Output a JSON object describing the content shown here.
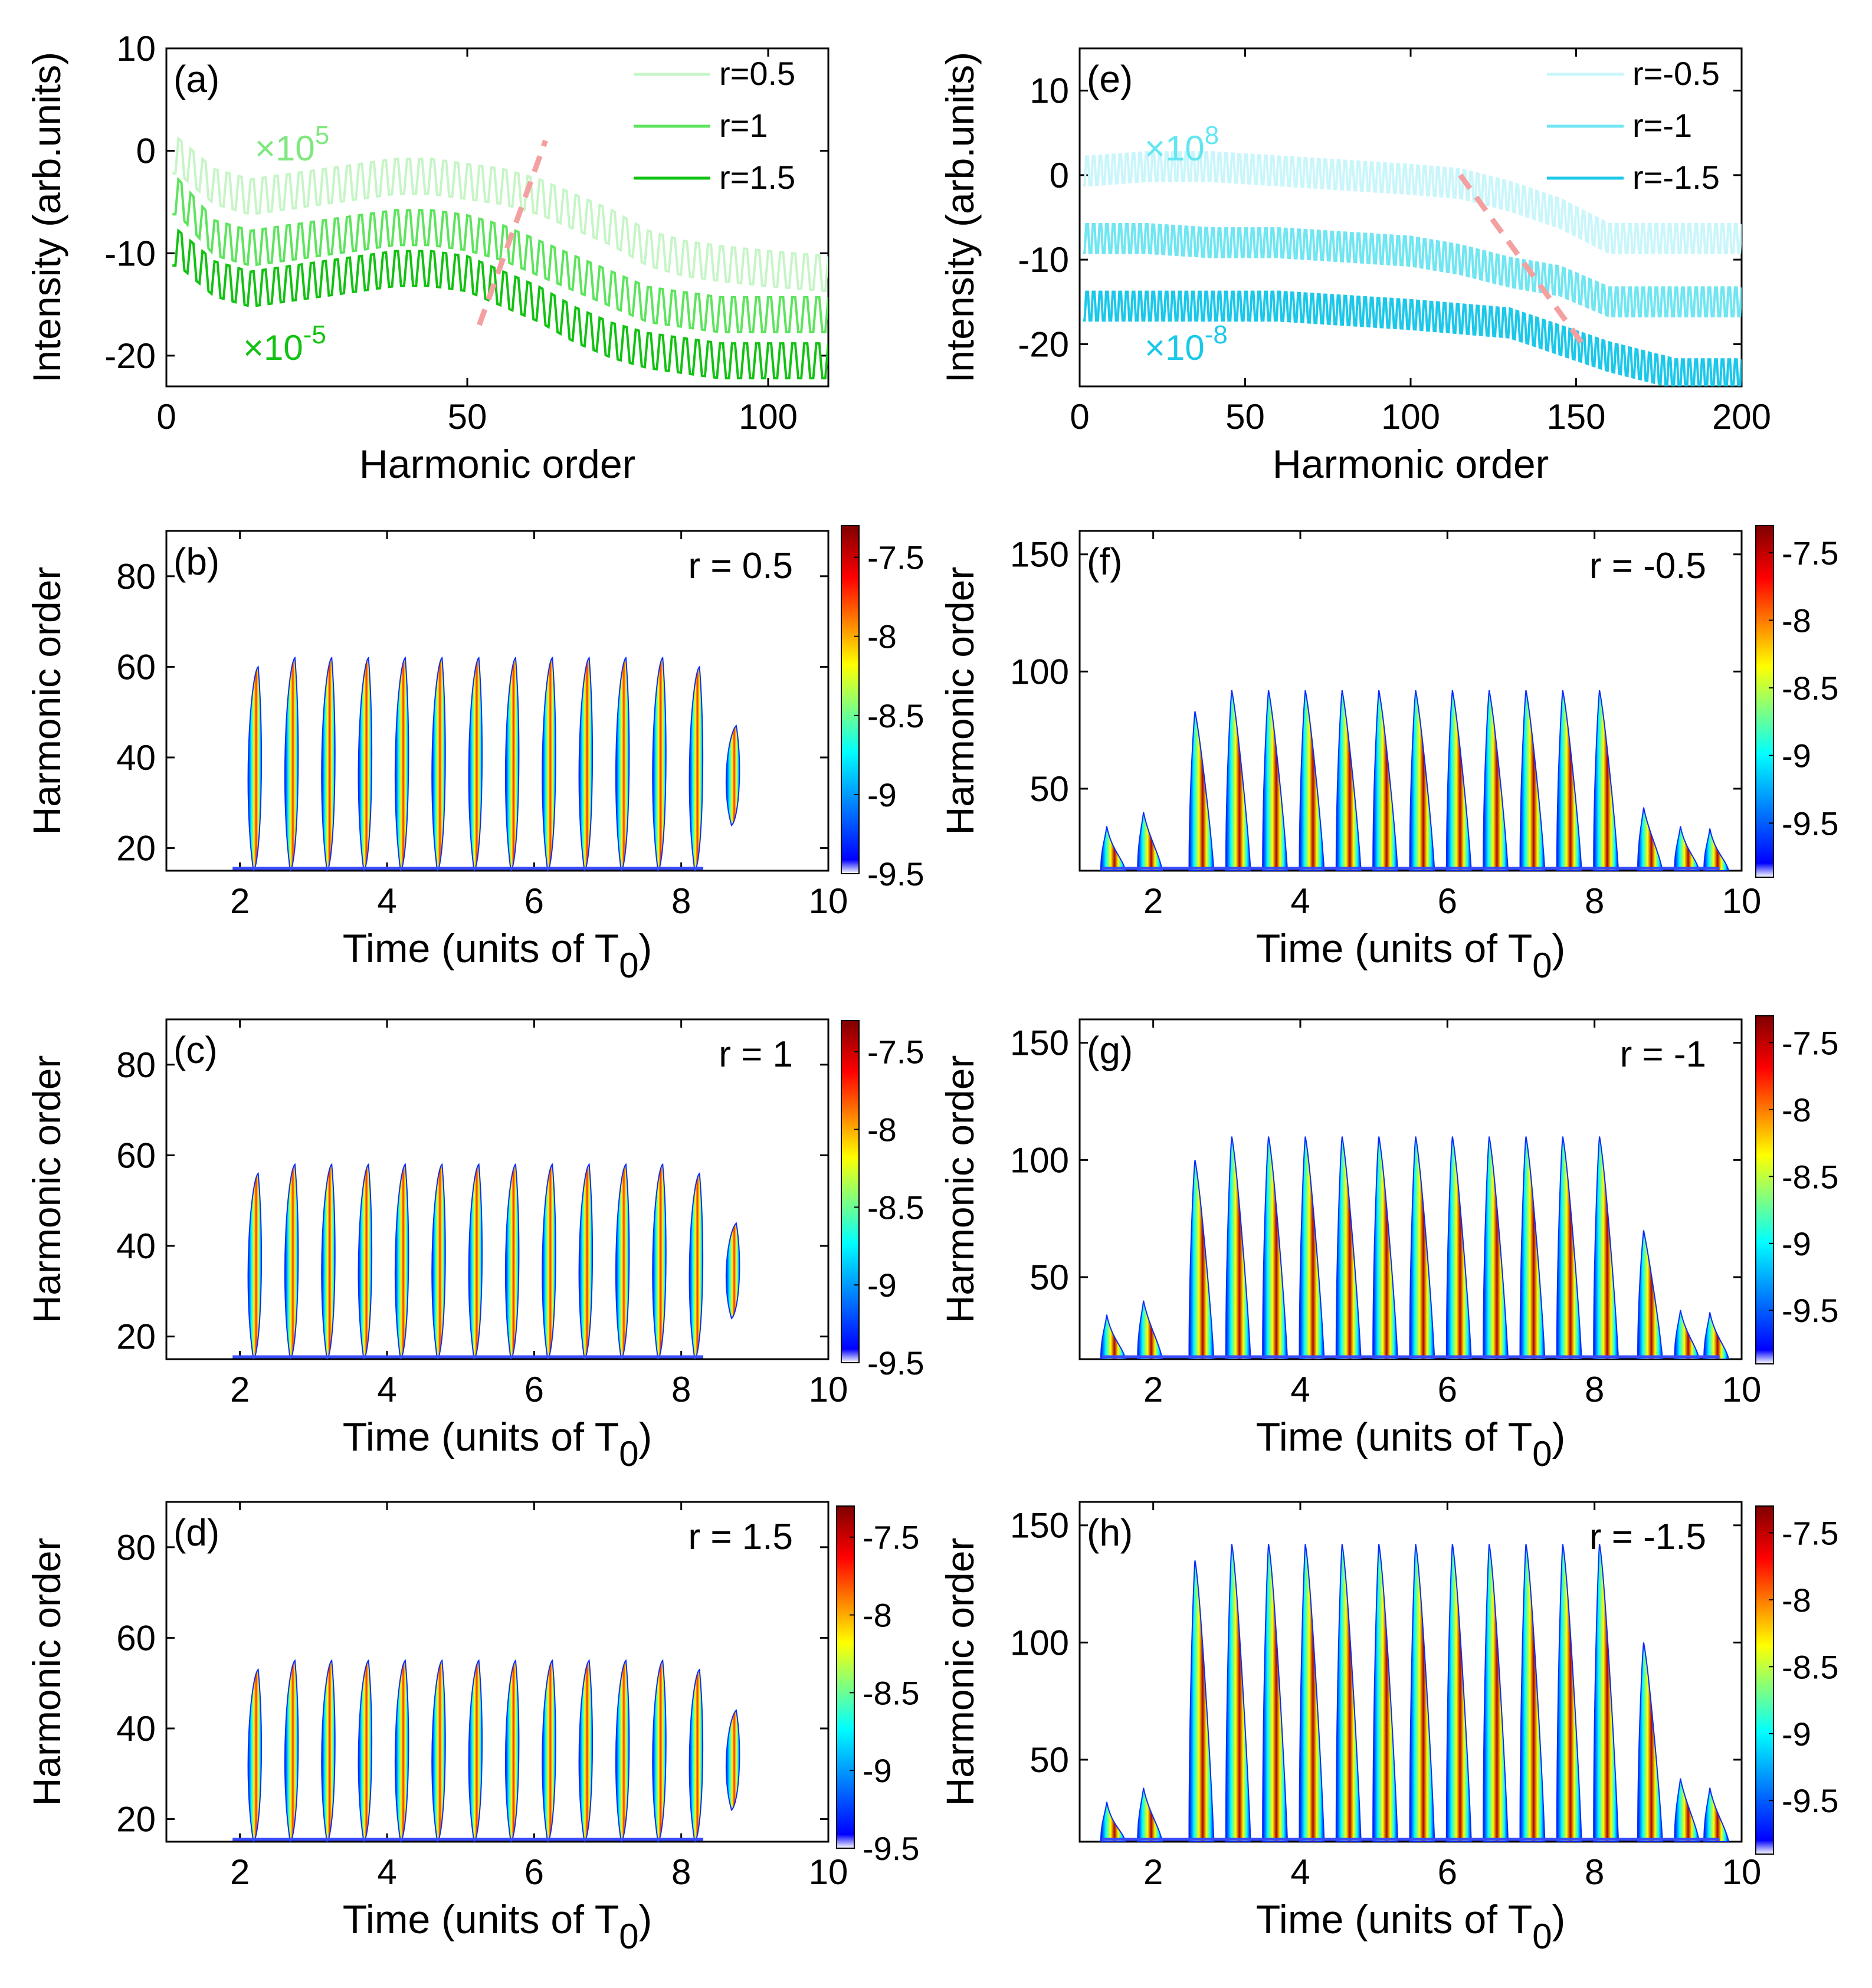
{
  "chart_data": [
    {
      "id": "a",
      "type": "line",
      "panel_label": "(a)",
      "xlabel": "Harmonic order",
      "ylabel": "Intensity (arb.units)",
      "xlim": [
        0,
        110
      ],
      "ylim": [
        -23,
        10
      ],
      "xticks": [
        0,
        50,
        100
      ],
      "yticks": [
        10,
        0,
        -10,
        -20
      ],
      "tick_labels_y": [
        "10",
        "0",
        "-10",
        "-20"
      ],
      "tick_labels_x": [
        "0",
        "50",
        "100"
      ],
      "series": [
        {
          "name": "r=0.5",
          "color": "#c6f5c6",
          "values": [
            -1,
            -4,
            -5,
            -4.5,
            -4,
            -3.5,
            -3,
            -3,
            -3.5,
            -4,
            -5,
            -6.5,
            -8,
            -10,
            -11,
            -11.5,
            -12,
            -12.5
          ]
        },
        {
          "name": "r=1",
          "color": "#5de45d",
          "values": [
            -5,
            -9,
            -10,
            -9.5,
            -9,
            -8.5,
            -8,
            -8,
            -8.5,
            -9.5,
            -11,
            -12.5,
            -14,
            -15.5,
            -16,
            -16.5,
            -16.5,
            -16.5
          ]
        },
        {
          "name": "r=1.5",
          "color": "#12c212",
          "values": [
            -10,
            -13,
            -14,
            -13.5,
            -13,
            -12.5,
            -12,
            -12,
            -12.5,
            -14,
            -15.5,
            -17.5,
            -19,
            -20,
            -20.5,
            -21,
            -21,
            -21
          ]
        }
      ],
      "x": [
        2,
        8,
        14,
        20,
        26,
        32,
        38,
        44,
        50,
        56,
        62,
        68,
        74,
        80,
        86,
        92,
        100,
        110
      ],
      "annotations": [
        {
          "text": "×10",
          "exp": "5",
          "color": "#7ee87e"
        },
        {
          "text": "×10",
          "exp": "-5",
          "color": "#12c212"
        }
      ],
      "cutoff_line": {
        "color": "#f4a0a0",
        "x": [
          52,
          63
        ],
        "y": [
          -17,
          1
        ]
      }
    },
    {
      "id": "e",
      "type": "line",
      "panel_label": "(e)",
      "xlabel": "Harmonic order",
      "ylabel": "Intensity (arb.units)",
      "xlim": [
        0,
        200
      ],
      "ylim": [
        -25,
        15
      ],
      "xticks": [
        0,
        50,
        100,
        150,
        200
      ],
      "yticks": [
        10,
        0,
        -10,
        -20
      ],
      "tick_labels_y": [
        "10",
        "0",
        "-10",
        "-20"
      ],
      "tick_labels_x": [
        "0",
        "50",
        "100",
        "150",
        "200"
      ],
      "series": [
        {
          "name": "r=-0.5",
          "color": "#c9f6fb",
          "values": [
            0,
            0.5,
            0.5,
            0,
            -0.5,
            -1,
            -1.5,
            -3,
            -5,
            -8,
            -8,
            -8
          ]
        },
        {
          "name": "r=-1",
          "color": "#6fe6f2",
          "values": [
            -8,
            -8,
            -8.5,
            -8.5,
            -9,
            -9.5,
            -10.5,
            -12,
            -13,
            -15.5,
            -15.5,
            -15.5
          ]
        },
        {
          "name": "r=-1.5",
          "color": "#1cc8ea",
          "values": [
            -16,
            -16,
            -16,
            -16,
            -16.5,
            -17,
            -17.5,
            -18,
            -20,
            -22,
            -24,
            -24
          ]
        }
      ],
      "x": [
        3,
        20,
        40,
        60,
        80,
        100,
        115,
        130,
        145,
        160,
        180,
        200
      ],
      "annotations": [
        {
          "text": "×10",
          "exp": "8",
          "color": "#62e6f2"
        },
        {
          "text": "×10",
          "exp": "-8",
          "color": "#1cc8ea"
        }
      ],
      "cutoff_line": {
        "color": "#f4a0a0",
        "x": [
          115,
          152
        ],
        "y": [
          0,
          -20
        ]
      }
    },
    {
      "id": "b",
      "type": "heatmap",
      "panel_label": "(b)",
      "r_label": "r = 0.5",
      "xlabel_main": "Time (units of T",
      "xlabel_sub": "0",
      "xlabel_close": ")",
      "ylabel": "Harmonic order",
      "xlim": [
        1,
        10
      ],
      "ylim": [
        15,
        90
      ],
      "xticks": [
        2,
        4,
        6,
        8,
        10
      ],
      "tick_labels_x": [
        "2",
        "4",
        "6",
        "8",
        "10"
      ],
      "yticks": [
        80,
        60,
        40,
        20
      ],
      "tick_labels_y": [
        "80",
        "60",
        "40",
        "20"
      ],
      "colorbar": {
        "range": [
          -9.5,
          -7.3
        ],
        "ticks": [
          -7.5,
          -8,
          -8.5,
          -9,
          -9.5
        ],
        "labels": [
          "-7.5",
          "-8",
          "-8.5",
          "-9",
          "-9.5"
        ]
      },
      "bursts": {
        "t": [
          2.2,
          2.7,
          3.2,
          3.7,
          4.2,
          4.7,
          5.2,
          5.7,
          6.2,
          6.7,
          7.2,
          7.7,
          8.2,
          8.7
        ],
        "hmax": [
          60,
          62,
          62,
          62,
          62,
          62,
          62,
          62,
          62,
          62,
          62,
          62,
          60,
          47
        ],
        "hmin": [
          15,
          15,
          15,
          15,
          15,
          15,
          15,
          15,
          15,
          15,
          15,
          15,
          15,
          25
        ]
      }
    },
    {
      "id": "c",
      "type": "heatmap",
      "panel_label": "(c)",
      "r_label": "r = 1",
      "xlabel_main": "Time (units of T",
      "xlabel_sub": "0",
      "xlabel_close": ")",
      "ylabel": "Harmonic order",
      "xlim": [
        1,
        10
      ],
      "ylim": [
        15,
        90
      ],
      "xticks": [
        2,
        4,
        6,
        8,
        10
      ],
      "tick_labels_x": [
        "2",
        "4",
        "6",
        "8",
        "10"
      ],
      "yticks": [
        80,
        60,
        40,
        20
      ],
      "tick_labels_y": [
        "80",
        "60",
        "40",
        "20"
      ],
      "colorbar": {
        "range": [
          -9.5,
          -7.3
        ],
        "ticks": [
          -7.5,
          -8,
          -8.5,
          -9,
          -9.5
        ],
        "labels": [
          "-7.5",
          "-8",
          "-8.5",
          "-9",
          "-9.5"
        ]
      },
      "bursts": {
        "t": [
          2.2,
          2.7,
          3.2,
          3.7,
          4.2,
          4.7,
          5.2,
          5.7,
          6.2,
          6.7,
          7.2,
          7.7,
          8.2,
          8.7
        ],
        "hmax": [
          56,
          58,
          58,
          58,
          58,
          58,
          58,
          58,
          58,
          58,
          58,
          58,
          56,
          45
        ],
        "hmin": [
          15,
          15,
          15,
          15,
          15,
          15,
          15,
          15,
          15,
          15,
          15,
          15,
          15,
          24
        ]
      }
    },
    {
      "id": "d",
      "type": "heatmap",
      "panel_label": "(d)",
      "r_label": "r = 1.5",
      "xlabel_main": "Time (units of T",
      "xlabel_sub": "0",
      "xlabel_close": ")",
      "ylabel": "Harmonic order",
      "xlim": [
        1,
        10
      ],
      "ylim": [
        15,
        90
      ],
      "xticks": [
        2,
        4,
        6,
        8,
        10
      ],
      "tick_labels_x": [
        "2",
        "4",
        "6",
        "8",
        "10"
      ],
      "yticks": [
        80,
        60,
        40,
        20
      ],
      "tick_labels_y": [
        "80",
        "60",
        "40",
        "20"
      ],
      "colorbar": {
        "range": [
          -9.5,
          -7.3
        ],
        "ticks": [
          -7.5,
          -8,
          -8.5,
          -9,
          -9.5
        ],
        "labels": [
          "-7.5",
          "-8",
          "-8.5",
          "-9",
          "-9.5"
        ]
      },
      "bursts": {
        "t": [
          2.2,
          2.7,
          3.2,
          3.7,
          4.2,
          4.7,
          5.2,
          5.7,
          6.2,
          6.7,
          7.2,
          7.7,
          8.2,
          8.7
        ],
        "hmax": [
          53,
          55,
          55,
          55,
          55,
          55,
          55,
          55,
          55,
          55,
          55,
          55,
          53,
          44
        ],
        "hmin": [
          15,
          15,
          15,
          15,
          15,
          15,
          15,
          15,
          15,
          15,
          15,
          15,
          15,
          22
        ]
      }
    },
    {
      "id": "f",
      "type": "heatmap",
      "panel_label": "(f)",
      "r_label": "r = -0.5",
      "xlabel_main": "Time (units of T",
      "xlabel_sub": "0",
      "xlabel_close": ")",
      "ylabel": "Harmonic order",
      "xlim": [
        1,
        10
      ],
      "ylim": [
        15,
        160
      ],
      "xticks": [
        2,
        4,
        6,
        8,
        10
      ],
      "tick_labels_x": [
        "2",
        "4",
        "6",
        "8",
        "10"
      ],
      "yticks": [
        150,
        100,
        50
      ],
      "tick_labels_y": [
        "150",
        "100",
        "50"
      ],
      "colorbar": {
        "range": [
          -9.9,
          -7.3
        ],
        "ticks": [
          -7.5,
          -8,
          -8.5,
          -9,
          -9.5
        ],
        "labels": [
          "-7.5",
          "-8",
          "-8.5",
          "-9",
          "-9.5"
        ]
      },
      "bursts": {
        "t": [
          1.4,
          1.9,
          2.6,
          3.1,
          3.6,
          4.1,
          4.6,
          5.1,
          5.6,
          6.1,
          6.6,
          7.1,
          7.6,
          8.1,
          8.7,
          9.2,
          9.6
        ],
        "hmax": [
          34,
          40,
          83,
          92,
          92,
          92,
          92,
          92,
          92,
          92,
          92,
          92,
          92,
          92,
          42,
          34,
          33
        ],
        "hmin": [
          15,
          15,
          15,
          15,
          15,
          15,
          15,
          15,
          15,
          15,
          15,
          15,
          15,
          15,
          15,
          15,
          15
        ]
      }
    },
    {
      "id": "g",
      "type": "heatmap",
      "panel_label": "(g)",
      "r_label": "r = -1",
      "xlabel_main": "Time (units of T",
      "xlabel_sub": "0",
      "xlabel_close": ")",
      "ylabel": "Harmonic order",
      "xlim": [
        1,
        10
      ],
      "ylim": [
        15,
        160
      ],
      "xticks": [
        2,
        4,
        6,
        8,
        10
      ],
      "tick_labels_x": [
        "2",
        "4",
        "6",
        "8",
        "10"
      ],
      "yticks": [
        150,
        100,
        50
      ],
      "tick_labels_y": [
        "150",
        "100",
        "50"
      ],
      "colorbar": {
        "range": [
          -9.9,
          -7.3
        ],
        "ticks": [
          -7.5,
          -8,
          -8.5,
          -9,
          -9.5
        ],
        "labels": [
          "-7.5",
          "-8",
          "-8.5",
          "-9",
          "-9.5"
        ]
      },
      "bursts": {
        "t": [
          1.4,
          1.9,
          2.6,
          3.1,
          3.6,
          4.1,
          4.6,
          5.1,
          5.6,
          6.1,
          6.6,
          7.1,
          7.6,
          8.1,
          8.7,
          9.2,
          9.6
        ],
        "hmax": [
          34,
          40,
          100,
          110,
          110,
          110,
          110,
          110,
          110,
          110,
          110,
          110,
          110,
          110,
          70,
          36,
          35
        ],
        "hmin": [
          15,
          15,
          15,
          15,
          15,
          15,
          15,
          15,
          15,
          15,
          15,
          15,
          15,
          15,
          15,
          15,
          15
        ]
      }
    },
    {
      "id": "h",
      "type": "heatmap",
      "panel_label": "(h)",
      "r_label": "r = -1.5",
      "xlabel_main": "Time (units of T",
      "xlabel_sub": "0",
      "xlabel_close": ")",
      "ylabel": "Harmonic order",
      "xlim": [
        1,
        10
      ],
      "ylim": [
        15,
        160
      ],
      "xticks": [
        2,
        4,
        6,
        8,
        10
      ],
      "tick_labels_x": [
        "2",
        "4",
        "6",
        "8",
        "10"
      ],
      "yticks": [
        150,
        100,
        50
      ],
      "tick_labels_y": [
        "150",
        "100",
        "50"
      ],
      "colorbar": {
        "range": [
          -9.9,
          -7.3
        ],
        "ticks": [
          -7.5,
          -8,
          -8.5,
          -9,
          -9.5
        ],
        "labels": [
          "-7.5",
          "-8",
          "-8.5",
          "-9",
          "-9.5"
        ]
      },
      "bursts": {
        "t": [
          1.4,
          1.9,
          2.6,
          3.1,
          3.6,
          4.1,
          4.6,
          5.1,
          5.6,
          6.1,
          6.6,
          7.1,
          7.6,
          8.1,
          8.7,
          9.2,
          9.6
        ],
        "hmax": [
          32,
          38,
          135,
          142,
          142,
          142,
          142,
          142,
          142,
          142,
          142,
          142,
          142,
          142,
          100,
          42,
          38
        ],
        "hmin": [
          15,
          15,
          15,
          15,
          15,
          15,
          15,
          15,
          15,
          15,
          15,
          15,
          15,
          15,
          15,
          15,
          15
        ]
      }
    }
  ],
  "colors": {
    "axis": "#000000",
    "jet_low": "#0000ff",
    "jet_mid_low": "#00ffff",
    "jet_mid": "#ffff00",
    "jet_high": "#ff0000",
    "jet_top": "#7f0000"
  }
}
